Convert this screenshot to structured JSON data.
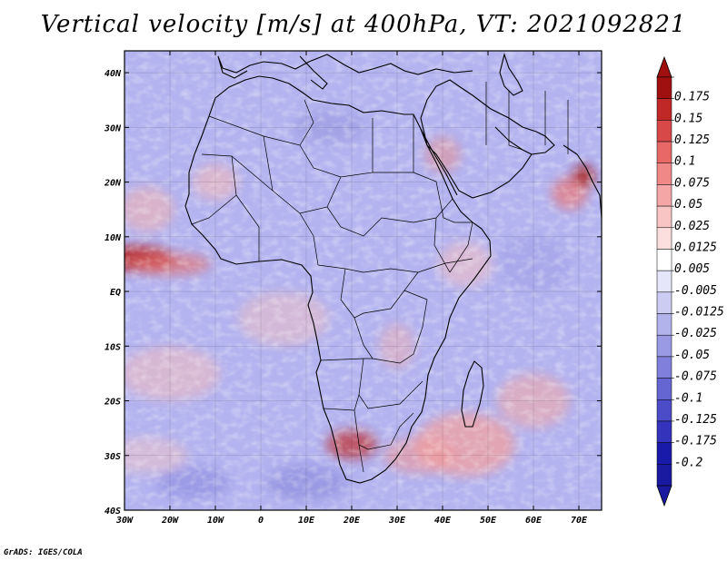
{
  "title": "Vertical velocity [m/s] at 400hPa, VT: 2021092821",
  "credit": "GrADS: IGES/COLA",
  "map": {
    "lat_labels": [
      "40N",
      "30N",
      "20N",
      "10N",
      "EQ",
      "10S",
      "20S",
      "30S",
      "40S"
    ],
    "lat_values": [
      40,
      30,
      20,
      10,
      0,
      -10,
      -20,
      -30,
      -40
    ],
    "lon_labels": [
      "30W",
      "20W",
      "10W",
      "0",
      "10E",
      "20E",
      "30E",
      "40E",
      "50E",
      "60E",
      "70E"
    ],
    "lon_values": [
      -30,
      -20,
      -10,
      0,
      10,
      20,
      30,
      40,
      50,
      60,
      70
    ],
    "lon_range": [
      -30,
      75
    ],
    "lat_range": [
      -40,
      44
    ],
    "background_color": "#b3b3f0",
    "coastline_color": "#000000"
  },
  "colorbar": {
    "labels": [
      "0.175",
      "0.15",
      "0.125",
      "0.1",
      "0.075",
      "0.05",
      "0.025",
      "0.0125",
      "0.005",
      "-0.005",
      "-0.0125",
      "-0.025",
      "-0.05",
      "-0.075",
      "-0.1",
      "-0.125",
      "-0.175",
      "-0.2"
    ],
    "colors": [
      "#a01010",
      "#c02828",
      "#d84848",
      "#e86868",
      "#f08888",
      "#f4a6a6",
      "#f8c4c4",
      "#fbdede",
      "#ffffff",
      "#e6e6fa",
      "#ccccf2",
      "#b3b3ec",
      "#9999e4",
      "#8080dc",
      "#6666d2",
      "#4c4cc8",
      "#3333bc",
      "#1a1aaa",
      "#1a1aa0"
    ]
  },
  "features": [
    {
      "name": "Strong ascent Guinea coast",
      "lon": -27,
      "lat": 6
    },
    {
      "name": "Strong ascent Arabian Sea",
      "lon": 71,
      "lat": 21
    },
    {
      "name": "Ascent southern Africa",
      "lon": 20,
      "lat": -28
    },
    {
      "name": "Ascent southwest Indian Ocean",
      "lon": 45,
      "lat": -28
    }
  ]
}
